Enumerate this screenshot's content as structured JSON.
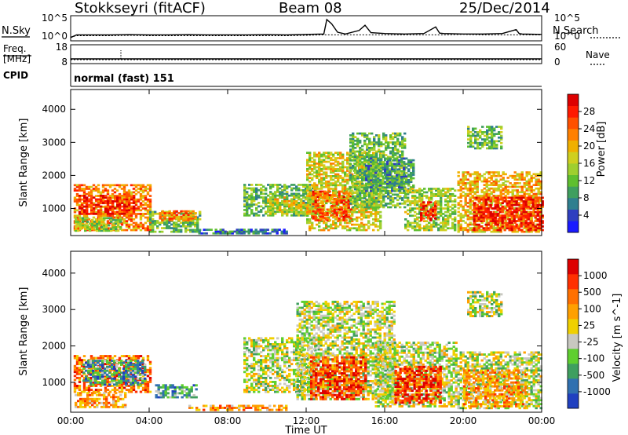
{
  "header": {
    "station": "Stokkseyri (fitACF)",
    "beam": "Beam 08",
    "date": "25/Dec/2014"
  },
  "side_labels": {
    "nsky": "N.Sky",
    "nsearch": "N.Search",
    "freq_line1": "Freq.",
    "freq_line2": "[MHz]",
    "nave": "Nave",
    "cpid": "CPID",
    "cpid_value": "normal (fast) 151"
  },
  "chart_data": [
    {
      "type": "line",
      "name_key": "noise",
      "ylabel_left": "N.Sky",
      "ylabel_right": "N.Search",
      "left_ticks": [
        "10^5",
        "10^0"
      ],
      "right_ticks": [
        "10^5",
        "10^0"
      ],
      "x_hours": [
        0,
        0.3,
        1,
        2,
        3,
        4,
        5,
        6,
        7,
        8,
        9,
        10,
        11,
        12,
        12.9,
        13.05,
        13.3,
        13.6,
        14,
        14.7,
        15,
        15.3,
        16,
        17,
        18,
        18.6,
        18.8,
        19,
        20,
        21,
        22,
        22.7,
        22.85,
        23,
        24
      ],
      "log_sky": [
        0.4,
        1.0,
        1.0,
        1.0,
        1.05,
        1.0,
        1.0,
        1.05,
        1.0,
        1.0,
        1.0,
        1.05,
        1.0,
        1.1,
        1.2,
        4.5,
        3.5,
        1.6,
        1.2,
        2.0,
        3.2,
        1.5,
        1.3,
        1.2,
        1.3,
        2.8,
        1.4,
        1.3,
        1.2,
        1.2,
        1.3,
        2.2,
        1.3,
        1.2,
        1.1
      ],
      "log_search": [
        0.5,
        0.8,
        0.8,
        0.8,
        0.9,
        0.8,
        0.8,
        0.8,
        0.8,
        0.8,
        0.8,
        0.8,
        0.8,
        0.9,
        1.0,
        1.0,
        1.0,
        1.0,
        1.0,
        1.0,
        1.0,
        1.0,
        1.0,
        1.0,
        1.0,
        1.0,
        1.0,
        1.0,
        1.1,
        1.0,
        1.0,
        1.0,
        1.0,
        1.0,
        1.0
      ]
    },
    {
      "type": "line",
      "name_key": "freq",
      "left_ticks": [
        "18",
        "8"
      ],
      "right_ticks": [
        "60",
        "0"
      ],
      "freq_mhz": 10.5,
      "nave": 13
    },
    {
      "type": "heatmap",
      "name_key": "power",
      "ylabel": "Slant Range [km]",
      "yticks": [
        1000,
        2000,
        3000,
        4000
      ],
      "ylim": [
        180,
        4600
      ],
      "colorbar_label": "Power [dB]",
      "colorbar_ticks": [
        "28",
        "24",
        "20",
        "16",
        "12",
        "8",
        "4"
      ],
      "colors": [
        "#1a1aff",
        "#2f3fc0",
        "#2f7f8f",
        "#3f9f5f",
        "#5fbf2f",
        "#9fcf2f",
        "#cfcf1f",
        "#f0b000",
        "#ff8000",
        "#ff5000",
        "#ff1a00",
        "#dd0000"
      ],
      "patches": [
        {
          "h0": 0.15,
          "h1": 4.1,
          "r0": 300,
          "r1": 1700,
          "c": 8
        },
        {
          "h0": 0.4,
          "h1": 3.2,
          "r0": 800,
          "r1": 1400,
          "c": 10
        },
        {
          "h0": 0.2,
          "h1": 2.5,
          "r0": 280,
          "r1": 700,
          "c": 5
        },
        {
          "h0": 4.0,
          "h1": 6.6,
          "r0": 250,
          "r1": 900,
          "c": 4
        },
        {
          "h0": 4.5,
          "h1": 6.4,
          "r0": 600,
          "r1": 900,
          "c": 8
        },
        {
          "h0": 6.5,
          "h1": 11.0,
          "r0": 200,
          "r1": 350,
          "c": 2
        },
        {
          "h0": 8.8,
          "h1": 12.5,
          "r0": 750,
          "r1": 1700,
          "c": 4
        },
        {
          "h0": 10.0,
          "h1": 12.3,
          "r0": 800,
          "r1": 1300,
          "c": 6
        },
        {
          "h0": 12.0,
          "h1": 15.8,
          "r0": 300,
          "r1": 2700,
          "c": 6
        },
        {
          "h0": 12.3,
          "h1": 14.3,
          "r0": 600,
          "r1": 1500,
          "c": 9
        },
        {
          "h0": 14.2,
          "h1": 17.0,
          "r0": 1000,
          "r1": 3300,
          "c": 4
        },
        {
          "h0": 15.0,
          "h1": 17.5,
          "r0": 1500,
          "r1": 2500,
          "c": 3
        },
        {
          "h0": 17.0,
          "h1": 19.6,
          "r0": 300,
          "r1": 1600,
          "c": 5
        },
        {
          "h0": 17.8,
          "h1": 18.6,
          "r0": 600,
          "r1": 1200,
          "c": 10
        },
        {
          "h0": 19.7,
          "h1": 24.0,
          "r0": 250,
          "r1": 2100,
          "c": 7
        },
        {
          "h0": 20.5,
          "h1": 24.0,
          "r0": 300,
          "r1": 1300,
          "c": 10
        },
        {
          "h0": 20.2,
          "h1": 22.0,
          "r0": 2800,
          "r1": 3500,
          "c": 4
        }
      ]
    },
    {
      "type": "heatmap",
      "name_key": "velocity",
      "ylabel": "Slant Range [km]",
      "yticks": [
        1000,
        2000,
        3000,
        4000
      ],
      "ylim": [
        180,
        4600
      ],
      "xlabel": "Time UT",
      "xticks": [
        "00:00",
        "04:00",
        "08:00",
        "12:00",
        "16:00",
        "20:00",
        "00:00"
      ],
      "xtick_hours": [
        0,
        4,
        8,
        12,
        16,
        20,
        24
      ],
      "colorbar_label": "Velocity [m s^-1]",
      "colorbar_ticks": [
        "1000",
        "500",
        "100",
        "25",
        "-25",
        "-100",
        "-500",
        "-1000"
      ],
      "colors": [
        "#2040c0",
        "#3070b0",
        "#3f9f5f",
        "#5fcf2f",
        "#c8c8c0",
        "#f0d000",
        "#ffa000",
        "#ff7000",
        "#ff3000",
        "#dd0000"
      ],
      "patches": [
        {
          "h0": 0.15,
          "h1": 4.1,
          "r0": 700,
          "r1": 1700,
          "c": 7
        },
        {
          "h0": 0.6,
          "h1": 3.8,
          "r0": 900,
          "r1": 1600,
          "c": 2
        },
        {
          "h0": 0.2,
          "h1": 2.8,
          "r0": 280,
          "r1": 700,
          "c": 6
        },
        {
          "h0": 4.3,
          "h1": 6.4,
          "r0": 550,
          "r1": 900,
          "c": 2
        },
        {
          "h0": 6.0,
          "h1": 11.0,
          "r0": 200,
          "r1": 340,
          "c": 6
        },
        {
          "h0": 8.8,
          "h1": 12.5,
          "r0": 700,
          "r1": 2200,
          "c": 4
        },
        {
          "h0": 11.5,
          "h1": 16.5,
          "r0": 500,
          "r1": 3200,
          "c": 4
        },
        {
          "h0": 12.2,
          "h1": 15.0,
          "r0": 500,
          "r1": 1700,
          "c": 8
        },
        {
          "h0": 15.5,
          "h1": 19.6,
          "r0": 300,
          "r1": 2100,
          "c": 4
        },
        {
          "h0": 16.5,
          "h1": 18.8,
          "r0": 400,
          "r1": 1400,
          "c": 8
        },
        {
          "h0": 19.7,
          "h1": 24.0,
          "r0": 250,
          "r1": 1800,
          "c": 4
        },
        {
          "h0": 20.0,
          "h1": 23.2,
          "r0": 300,
          "r1": 1300,
          "c": 6
        },
        {
          "h0": 20.2,
          "h1": 22.0,
          "r0": 2800,
          "r1": 3500,
          "c": 4
        }
      ]
    }
  ]
}
